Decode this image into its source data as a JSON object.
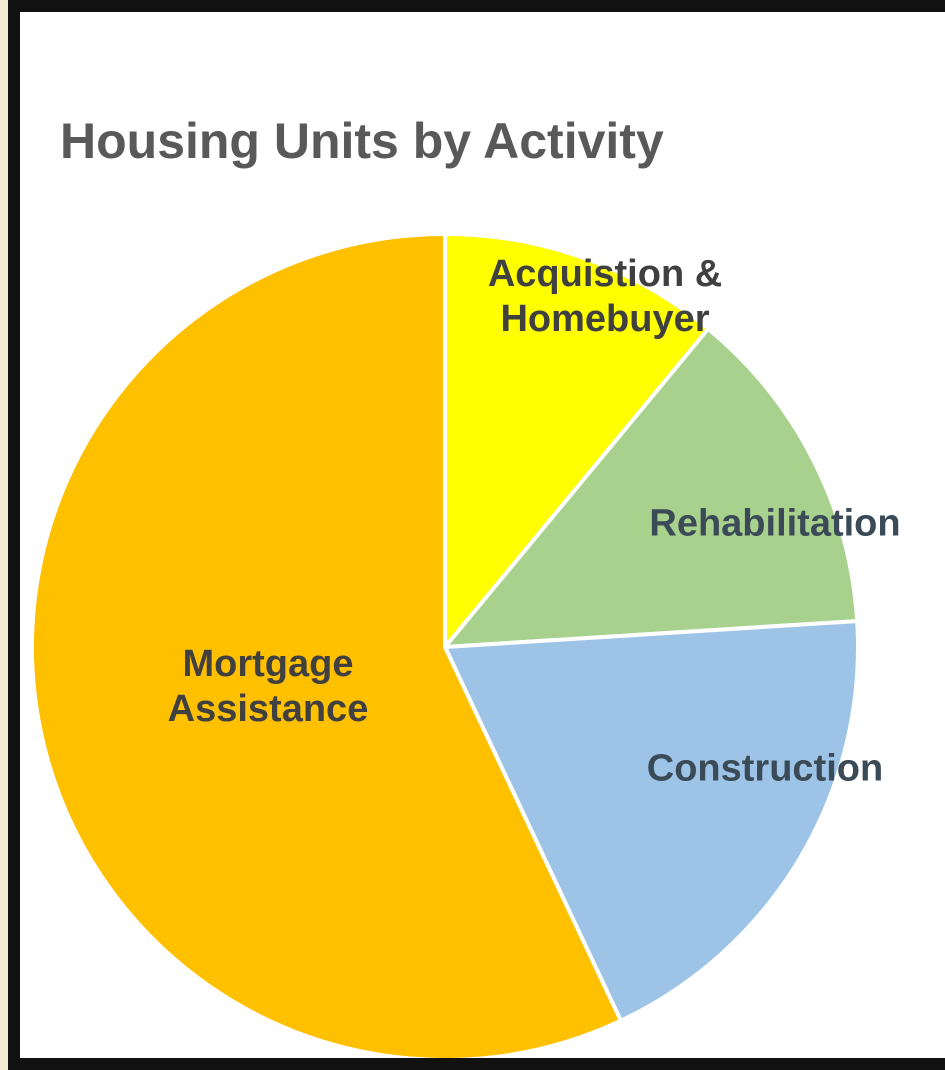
{
  "chart_data": {
    "type": "pie",
    "title": "Housing Units by Activity",
    "categories": [
      "Acquistion & Homebuyer",
      "Rehabilitation",
      "Construction",
      "Mortgage Assistance"
    ],
    "values": [
      11,
      13,
      19,
      57
    ],
    "colors": [
      "#ffff00",
      "#a9d18e",
      "#9dc3e6",
      "#ffc000"
    ]
  }
}
